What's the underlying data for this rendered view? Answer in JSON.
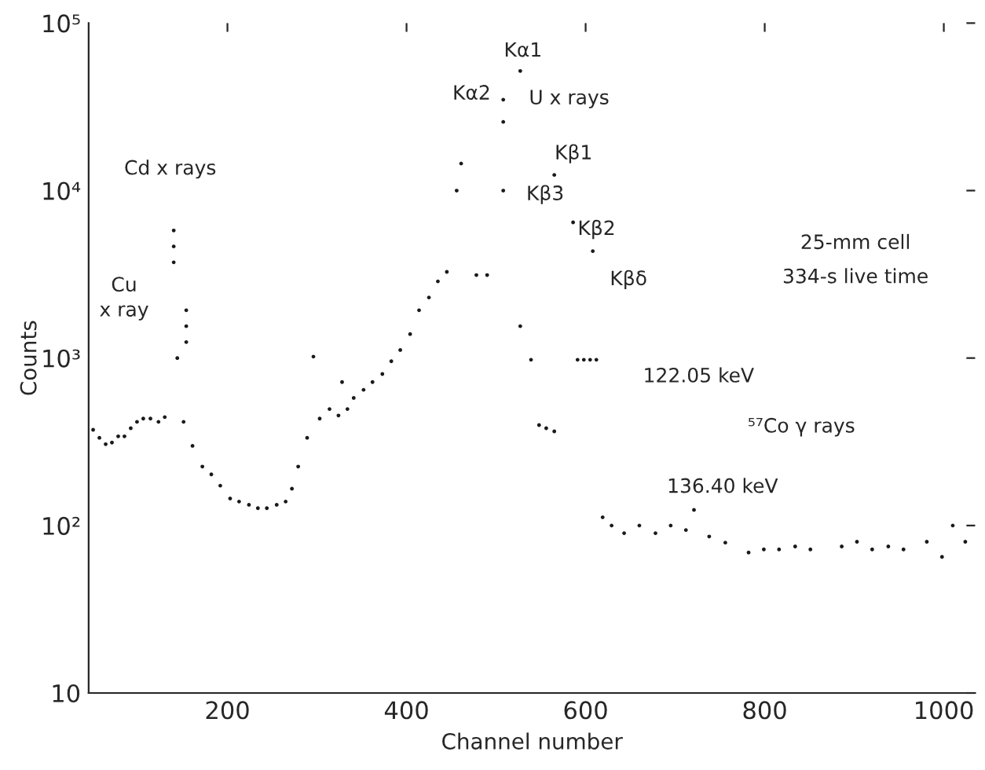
{
  "chart_data": {
    "type": "scatter",
    "xlabel": "Channel number",
    "ylabel": "Counts",
    "log": "y",
    "xlim": [
      45,
      1035
    ],
    "ylim": [
      10,
      100000
    ],
    "xticks": [
      200,
      400,
      600,
      800,
      1000
    ],
    "yticks": [
      10,
      {
        "value": 100,
        "label": "10²"
      },
      {
        "value": 1000,
        "label": "10³"
      },
      {
        "value": 10000,
        "label": "10⁴"
      },
      {
        "value": 100000,
        "label": "10⁵"
      }
    ],
    "grid": false,
    "marker": "circle",
    "series": [
      {
        "color": "#1a1a1a",
        "x": [
          50,
          57,
          64,
          71,
          78,
          85,
          92,
          99,
          106,
          114,
          123,
          130,
          140,
          140,
          140,
          144,
          154,
          154,
          154,
          151,
          161,
          172,
          182,
          192,
          203,
          213,
          224,
          234,
          244,
          255,
          265,
          272,
          279,
          289,
          296,
          303,
          314,
          324,
          328,
          334,
          341,
          352,
          362,
          373,
          383,
          393,
          404,
          414,
          425,
          435,
          445,
          456,
          461,
          478,
          490,
          508,
          508,
          508,
          527,
          527,
          539,
          548,
          556,
          565,
          565,
          586,
          608,
          591,
          598,
          605,
          612,
          619,
          629,
          643,
          660,
          678,
          695,
          712,
          721,
          738,
          756,
          782,
          799,
          816,
          834,
          851,
          886,
          903,
          920,
          938,
          955,
          981,
          998,
          1010,
          1024
        ],
        "values": [
          373,
          334,
          306,
          313,
          341,
          341,
          381,
          416,
          435,
          435,
          416,
          444,
          5780,
          4640,
          3730,
          1000,
          1930,
          1550,
          1245,
          416,
          299,
          225,
          202,
          173,
          145,
          139,
          133,
          127,
          127,
          133,
          139,
          166,
          225,
          334,
          1020,
          435,
          496,
          454,
          719,
          496,
          578,
          646,
          719,
          803,
          957,
          1117,
          1390,
          1930,
          2300,
          2870,
          3270,
          10000,
          14500,
          3130,
          3130,
          10000,
          25700,
          34900,
          51800,
          1550,
          977,
          398,
          381,
          365,
          12400,
          6460,
          4350,
          977,
          977,
          977,
          977,
          112,
          100,
          90,
          100,
          90,
          100,
          94,
          124,
          86,
          79,
          69,
          72,
          72,
          75,
          72,
          75,
          80,
          72,
          75,
          72,
          80,
          65,
          100,
          80
        ]
      }
    ],
    "annotations": [
      "Cd x rays",
      "Cu\nx ray",
      "Kα2",
      "Kα1",
      "U x rays",
      "Kβ1",
      "Kβ3",
      "Kβ2",
      "Kβδ",
      "122.05 keV",
      "⁵⁷Co γ rays",
      "136.40 keV",
      "25-mm cell",
      "334-s live time"
    ]
  }
}
